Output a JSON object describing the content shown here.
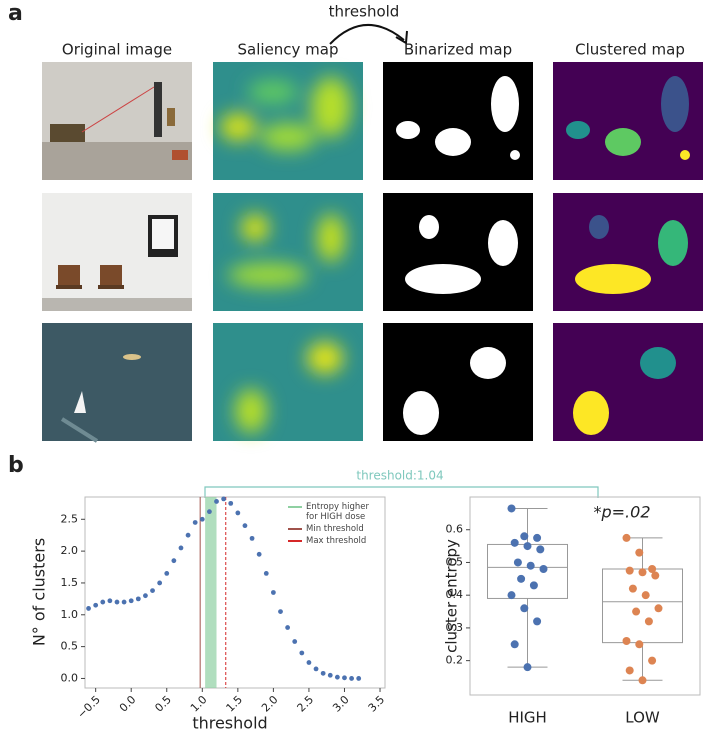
{
  "panel_a": {
    "label": "a",
    "threshold_label": "threshold",
    "columns": [
      "Original image",
      "Saliency map",
      "Binarized map",
      "Clustered map"
    ]
  },
  "panel_b": {
    "label": "b",
    "threshold_annotation": "threshold:1.04"
  },
  "chart_data": [
    {
      "type": "scatter",
      "xlabel": "threshold",
      "ylabel": "N° of clusters",
      "color": "#4c72b0",
      "x": [
        -0.6,
        -0.5,
        -0.4,
        -0.3,
        -0.2,
        -0.1,
        0.0,
        0.1,
        0.2,
        0.3,
        0.4,
        0.5,
        0.6,
        0.7,
        0.8,
        0.9,
        1.0,
        1.1,
        1.2,
        1.3,
        1.4,
        1.5,
        1.6,
        1.7,
        1.8,
        1.9,
        2.0,
        2.1,
        2.2,
        2.3,
        2.4,
        2.5,
        2.6,
        2.7,
        2.8,
        2.9,
        3.0,
        3.1,
        3.2
      ],
      "y": [
        1.1,
        1.15,
        1.2,
        1.22,
        1.2,
        1.2,
        1.22,
        1.25,
        1.3,
        1.38,
        1.5,
        1.65,
        1.85,
        2.05,
        2.25,
        2.45,
        2.5,
        2.62,
        2.78,
        2.82,
        2.75,
        2.6,
        2.4,
        2.2,
        1.95,
        1.65,
        1.35,
        1.05,
        0.8,
        0.58,
        0.4,
        0.25,
        0.15,
        0.08,
        0.05,
        0.02,
        0.01,
        0.0,
        0.0
      ],
      "xlim": [
        -0.65,
        3.57
      ],
      "ylim": [
        -0.15,
        2.85
      ],
      "xticks": [
        {
          "value": -0.5,
          "label": "−0.5"
        },
        {
          "value": 0,
          "label": "0.0"
        },
        0.5,
        {
          "value": 1,
          "label": "1.0"
        },
        1.5,
        {
          "value": 2,
          "label": "2.0"
        },
        2.5,
        {
          "value": 3,
          "label": "3.0"
        },
        3.5
      ],
      "yticks": [
        {
          "value": 0,
          "label": "0.0"
        },
        0.5,
        {
          "value": 1,
          "label": "1.0"
        },
        1.5,
        {
          "value": 2,
          "label": "2.0"
        },
        2.5
      ],
      "band": [
        1.04,
        1.2
      ],
      "band_color": "#8fd0a2",
      "band_label": "Entropy higher for HIGH dose",
      "min_threshold": 0.97,
      "min_color": "#a0524b",
      "min_label": "Min threshold",
      "max_threshold": 1.33,
      "max_color": "#d62728",
      "max_label": "Max threshold"
    },
    {
      "type": "box",
      "ylabel": "cluster entropy",
      "annotation": "*p=.02",
      "categories": [
        "HIGH",
        "LOW"
      ],
      "colors": [
        "#4c72b0",
        "#dd8452"
      ],
      "boxes": [
        {
          "whisker_low": 0.18,
          "q1": 0.39,
          "median": 0.485,
          "q3": 0.555,
          "whisker_high": 0.665
        },
        {
          "whisker_low": 0.14,
          "q1": 0.255,
          "median": 0.38,
          "q3": 0.48,
          "whisker_high": 0.575
        }
      ],
      "points": [
        [
          0.665,
          0.58,
          0.575,
          0.56,
          0.55,
          0.54,
          0.5,
          0.49,
          0.48,
          0.45,
          0.43,
          0.4,
          0.36,
          0.32,
          0.25,
          0.18
        ],
        [
          0.575,
          0.53,
          0.48,
          0.475,
          0.47,
          0.46,
          0.42,
          0.4,
          0.36,
          0.35,
          0.32,
          0.26,
          0.25,
          0.2,
          0.17,
          0.14
        ]
      ],
      "ylim": [
        0.095,
        0.7
      ],
      "yticks": [
        0.2,
        0.3,
        0.4,
        0.5,
        0.6
      ]
    }
  ]
}
